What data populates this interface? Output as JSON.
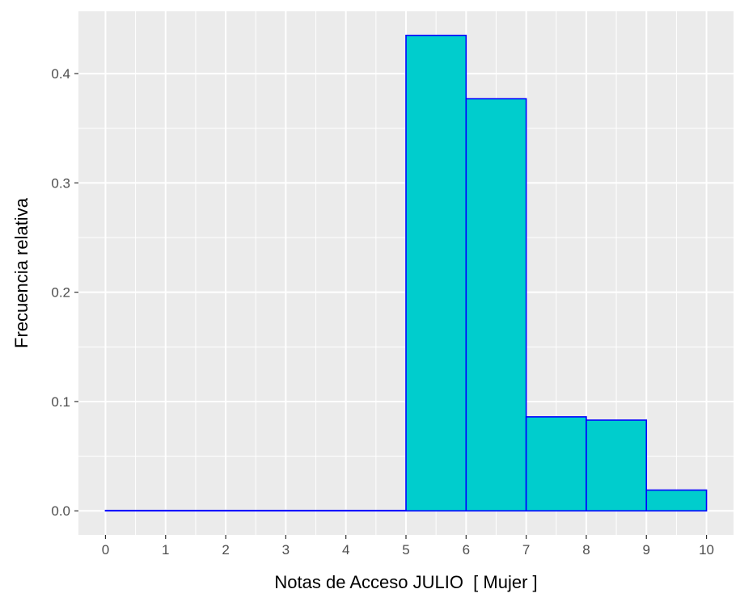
{
  "chart_data": {
    "type": "bar",
    "subtype": "histogram",
    "xlabel": "Notas de Acceso JULIO  [ Mujer ]",
    "ylabel": "Frecuencia relativa",
    "bins": [
      {
        "start": 0,
        "end": 1,
        "value": 0.0
      },
      {
        "start": 1,
        "end": 2,
        "value": 0.0
      },
      {
        "start": 2,
        "end": 3,
        "value": 0.0
      },
      {
        "start": 3,
        "end": 4,
        "value": 0.0
      },
      {
        "start": 4,
        "end": 5,
        "value": 0.0
      },
      {
        "start": 5,
        "end": 6,
        "value": 0.435
      },
      {
        "start": 6,
        "end": 7,
        "value": 0.377
      },
      {
        "start": 7,
        "end": 8,
        "value": 0.086
      },
      {
        "start": 8,
        "end": 9,
        "value": 0.083
      },
      {
        "start": 9,
        "end": 10,
        "value": 0.019
      }
    ],
    "x_ticks": [
      "0",
      "1",
      "2",
      "3",
      "4",
      "5",
      "6",
      "7",
      "8",
      "9",
      "10"
    ],
    "y_ticks": [
      "0.0",
      "0.1",
      "0.2",
      "0.3",
      "0.4"
    ],
    "xlim": [
      -0.45,
      10.45
    ],
    "ylim": [
      -0.022,
      0.457
    ],
    "grid": true,
    "colors": {
      "panel_background": "#ebebeb",
      "gridline": "#ffffff",
      "bar_fill": "#00cdcd",
      "bar_outline": "#0000ff",
      "tick_label": "#4d4d4d",
      "axis_title": "#000000"
    }
  }
}
